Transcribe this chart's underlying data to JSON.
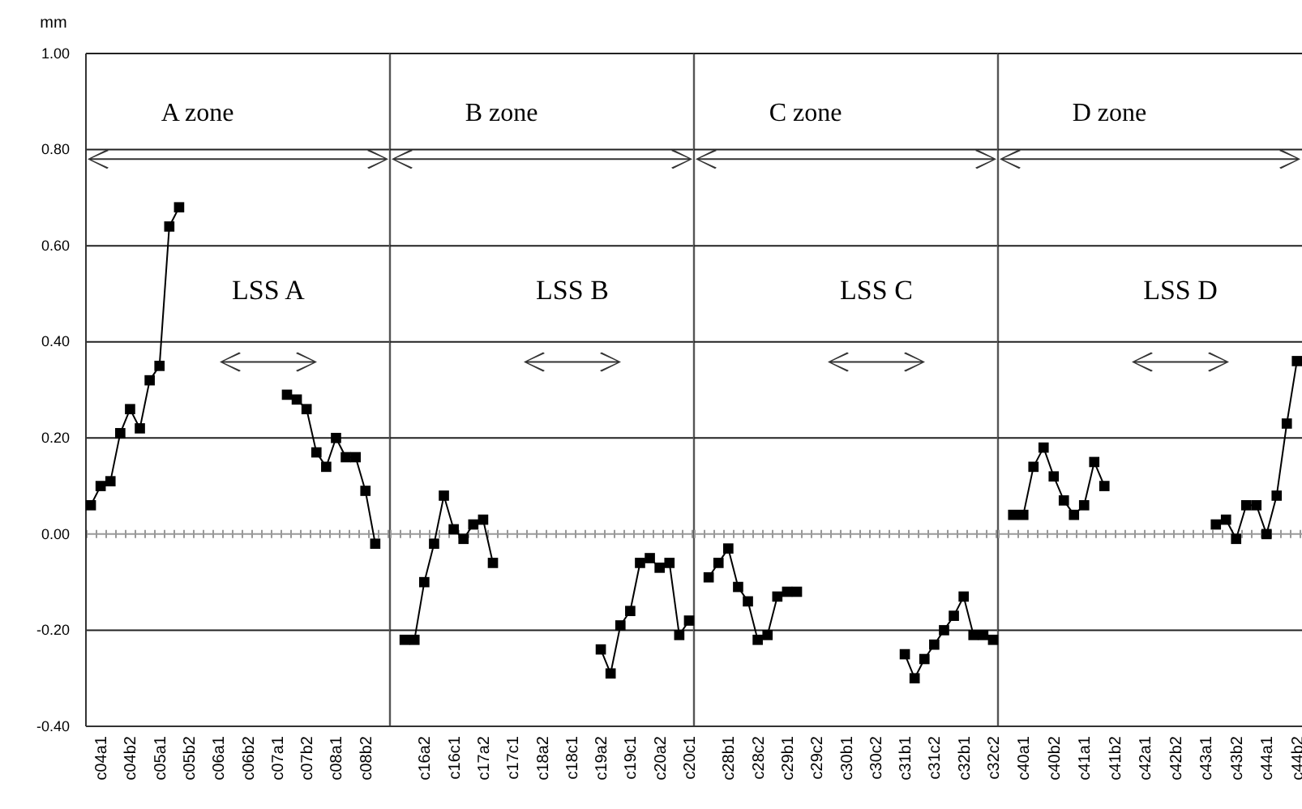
{
  "chart_data": [
    {
      "type": "line",
      "title": "A zone",
      "ylabel": "mm",
      "ylim": [
        -0.4,
        1.0
      ],
      "yticks": [
        {
          "value": -0.4,
          "label": "-0.40"
        },
        {
          "value": -0.2,
          "label": "-0.20"
        },
        {
          "value": 0,
          "label": "0.00"
        },
        {
          "value": 0.2,
          "label": "0.20"
        },
        {
          "value": 0.4,
          "label": "0.40"
        },
        {
          "value": 0.6,
          "label": "0.60"
        },
        {
          "value": 0.8,
          "label": "0.80"
        },
        {
          "value": 1.0,
          "label": "1.00"
        }
      ],
      "categories": [
        null,
        "c04a1",
        null,
        null,
        "c04b2",
        null,
        null,
        "c05a1",
        null,
        null,
        "c05b2",
        null,
        null,
        "c06a1",
        null,
        null,
        "c06b2",
        null,
        null,
        "c07a1",
        null,
        null,
        "c07b2",
        null,
        null,
        "c08a1",
        null,
        null,
        "c08b2",
        null,
        null
      ],
      "grid": "y",
      "marker": "square",
      "line_style": "solid",
      "series": [
        {
          "color": "#000000",
          "values": [
            0.06,
            0.1,
            0.11,
            0.21,
            0.26,
            0.22,
            0.32,
            0.35,
            0.64,
            0.68,
            null,
            null,
            null,
            null,
            null,
            null,
            null,
            null,
            null,
            null,
            0.29,
            0.28,
            0.26,
            0.17,
            0.14,
            0.2,
            0.16,
            0.16,
            0.09,
            -0.02,
            null
          ]
        }
      ],
      "ref_lines": [
        {
          "axis": "y",
          "value": 0,
          "line_style": "dotted",
          "color": "#999999"
        }
      ],
      "annotations": [
        "LSS A"
      ]
    },
    {
      "type": "line",
      "title": "B zone",
      "ylim": [
        -0.4,
        1.0
      ],
      "tick_labels": "x",
      "yticks": [
        {
          "value": -0.4,
          "label": null
        },
        {
          "value": -0.2,
          "label": null
        },
        {
          "value": 0,
          "label": null
        },
        {
          "value": 0.2,
          "label": null
        },
        {
          "value": 0.4,
          "label": null
        },
        {
          "value": 0.6,
          "label": null
        },
        {
          "value": 0.8,
          "label": null
        },
        {
          "value": 1.0,
          "label": null
        }
      ],
      "categories": [
        null,
        null,
        null,
        "c16a2",
        null,
        null,
        "c16c1",
        null,
        null,
        "c17a2",
        null,
        null,
        "c17c1",
        null,
        null,
        "c18a2",
        null,
        null,
        "c18c1",
        null,
        null,
        "c19a2",
        null,
        null,
        "c19c1",
        null,
        null,
        "c20a2",
        null,
        null,
        "c20c1"
      ],
      "grid": "y",
      "marker": "square",
      "line_style": "solid",
      "series": [
        {
          "color": "#000000",
          "values": [
            null,
            -0.22,
            -0.22,
            -0.1,
            -0.02,
            0.08,
            0.01,
            -0.01,
            0.02,
            0.03,
            -0.06,
            null,
            null,
            null,
            null,
            null,
            null,
            null,
            null,
            null,
            null,
            -0.24,
            -0.29,
            -0.19,
            -0.16,
            -0.06,
            -0.05,
            -0.07,
            -0.06,
            -0.21,
            -0.18
          ]
        }
      ],
      "ref_lines": [
        {
          "axis": "y",
          "value": 0,
          "line_style": "dotted",
          "color": "#999999"
        }
      ],
      "annotations": [
        "LSS B"
      ]
    },
    {
      "type": "line",
      "title": "C zone",
      "ylim": [
        -0.4,
        1.0
      ],
      "tick_labels": "x",
      "yticks": [
        {
          "value": -0.4,
          "label": null
        },
        {
          "value": -0.2,
          "label": null
        },
        {
          "value": 0,
          "label": null
        },
        {
          "value": 0.2,
          "label": null
        },
        {
          "value": 0.4,
          "label": null
        },
        {
          "value": 0.6,
          "label": null
        },
        {
          "value": 0.8,
          "label": null
        },
        {
          "value": 1.0,
          "label": null
        }
      ],
      "categories": [
        null,
        null,
        null,
        "c28b1",
        null,
        null,
        "c28c2",
        null,
        null,
        "c29b1",
        null,
        null,
        "c29c2",
        null,
        null,
        "c30b1",
        null,
        null,
        "c30c2",
        null,
        null,
        "c31b1",
        null,
        null,
        "c31c2",
        null,
        null,
        "c32b1",
        null,
        null,
        "c32c2"
      ],
      "grid": "y",
      "marker": "square",
      "line_style": "solid",
      "series": [
        {
          "color": "#000000",
          "values": [
            null,
            -0.09,
            -0.06,
            -0.03,
            -0.11,
            -0.14,
            -0.22,
            -0.21,
            -0.13,
            -0.12,
            -0.12,
            null,
            null,
            null,
            null,
            null,
            null,
            null,
            null,
            null,
            null,
            -0.25,
            -0.3,
            -0.26,
            -0.23,
            -0.2,
            -0.17,
            -0.13,
            -0.21,
            -0.21,
            -0.22
          ]
        }
      ],
      "ref_lines": [
        {
          "axis": "y",
          "value": 0,
          "line_style": "dotted",
          "color": "#999999"
        }
      ],
      "annotations": [
        "LSS C"
      ]
    },
    {
      "type": "line",
      "title": "D zone",
      "ylim": [
        -0.4,
        1.0
      ],
      "tick_labels": "x",
      "yticks": [
        {
          "value": -0.4,
          "label": null
        },
        {
          "value": -0.2,
          "label": null
        },
        {
          "value": 0,
          "label": null
        },
        {
          "value": 0.2,
          "label": null
        },
        {
          "value": 0.4,
          "label": null
        },
        {
          "value": 0.6,
          "label": null
        },
        {
          "value": 0.8,
          "label": null
        },
        {
          "value": 1.0,
          "label": null
        }
      ],
      "categories": [
        null,
        null,
        "c40a1",
        null,
        null,
        "c40b2",
        null,
        null,
        "c41a1",
        null,
        null,
        "c41b2",
        null,
        null,
        "c42a1",
        null,
        null,
        "c42b2",
        null,
        null,
        "c43a1",
        null,
        null,
        "c43b2",
        null,
        null,
        "c44a1",
        null,
        null,
        "c44b2"
      ],
      "grid": "y",
      "marker": "square",
      "line_style": "solid",
      "series": [
        {
          "color": "#000000",
          "values": [
            null,
            0.04,
            0.04,
            0.14,
            0.18,
            0.12,
            0.07,
            0.04,
            0.06,
            0.15,
            0.1,
            null,
            null,
            null,
            null,
            null,
            null,
            null,
            null,
            null,
            null,
            0.02,
            0.03,
            -0.01,
            0.06,
            0.06,
            0.0,
            0.08,
            0.23,
            0.36
          ]
        }
      ],
      "ref_lines": [
        {
          "axis": "y",
          "value": 0,
          "line_style": "dotted",
          "color": "#999999"
        }
      ],
      "annotations": [
        "LSS D"
      ]
    }
  ]
}
